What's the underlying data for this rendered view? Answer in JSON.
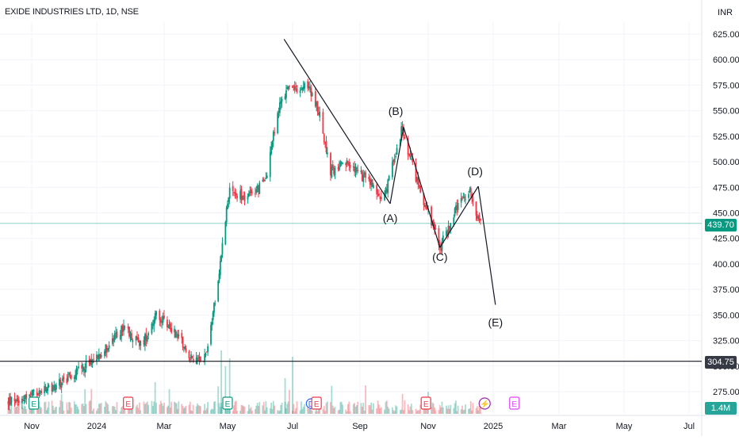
{
  "header": {
    "symbol": "EXIDE INDUSTRIES LTD, 1D, NSE",
    "currency": "INR"
  },
  "price_tags": {
    "last": "439.70",
    "level": "304.75",
    "volume": "1.4M"
  },
  "chart_data": {
    "type": "candlestick",
    "instrument": "EXIDE INDUSTRIES LTD",
    "interval": "1D",
    "exchange": "NSE",
    "currency": "INR",
    "grid": true,
    "ylim": [
      255,
      635
    ],
    "y_ticks": [
      275,
      300,
      325,
      350,
      375,
      400,
      425,
      450,
      475,
      500,
      525,
      550,
      575,
      600,
      625
    ],
    "x_ticks": [
      "Nov",
      "2024",
      "Mar",
      "May",
      "Jul",
      "Sep",
      "Nov",
      "2025",
      "Mar",
      "May",
      "Jul"
    ],
    "x_tick_dates": [
      "2023-11-01",
      "2024-01-01",
      "2024-03-01",
      "2024-05-01",
      "2024-07-01",
      "2024-09-01",
      "2024-11-01",
      "2025-01-01",
      "2025-03-01",
      "2025-05-01",
      "2025-07-01"
    ],
    "last_price": 439.7,
    "horizontal_level": 304.75,
    "current_volume": "1.4M",
    "approx_path": [
      {
        "date": "2023-10-10",
        "price": 265
      },
      {
        "date": "2023-11-20",
        "price": 278
      },
      {
        "date": "2023-12-20",
        "price": 300
      },
      {
        "date": "2024-01-10",
        "price": 318
      },
      {
        "date": "2024-01-25",
        "price": 338
      },
      {
        "date": "2024-02-10",
        "price": 320
      },
      {
        "date": "2024-02-22",
        "price": 350
      },
      {
        "date": "2024-03-10",
        "price": 335
      },
      {
        "date": "2024-03-18",
        "price": 325
      },
      {
        "date": "2024-03-28",
        "price": 305
      },
      {
        "date": "2024-04-10",
        "price": 310
      },
      {
        "date": "2024-04-22",
        "price": 385
      },
      {
        "date": "2024-05-02",
        "price": 470
      },
      {
        "date": "2024-05-20",
        "price": 465
      },
      {
        "date": "2024-06-05",
        "price": 480
      },
      {
        "date": "2024-06-12",
        "price": 520
      },
      {
        "date": "2024-06-20",
        "price": 560
      },
      {
        "date": "2024-06-28",
        "price": 575
      },
      {
        "date": "2024-07-05",
        "price": 568
      },
      {
        "date": "2024-07-15",
        "price": 575
      },
      {
        "date": "2024-07-25",
        "price": 550
      },
      {
        "date": "2024-08-05",
        "price": 490
      },
      {
        "date": "2024-08-20",
        "price": 498
      },
      {
        "date": "2024-09-10",
        "price": 480
      },
      {
        "date": "2024-09-22",
        "price": 462
      },
      {
        "date": "2024-10-03",
        "price": 510
      },
      {
        "date": "2024-10-08",
        "price": 530
      },
      {
        "date": "2024-10-15",
        "price": 505
      },
      {
        "date": "2024-10-30",
        "price": 455
      },
      {
        "date": "2024-11-13",
        "price": 418
      },
      {
        "date": "2024-11-28",
        "price": 455
      },
      {
        "date": "2024-12-10",
        "price": 470
      },
      {
        "date": "2024-12-20",
        "price": 440
      }
    ],
    "volume_events": [
      {
        "label": "E",
        "date": "2023-11-03",
        "color": "#089981"
      },
      {
        "label": "E",
        "date": "2024-01-29",
        "color": "#f23645"
      },
      {
        "label": "E",
        "date": "2024-05-01",
        "color": "#089981"
      },
      {
        "label": "D",
        "date": "2024-07-18",
        "color": "#2962ff"
      },
      {
        "label": "E",
        "date": "2024-07-23",
        "color": "#f23645"
      },
      {
        "label": "E",
        "date": "2024-10-30",
        "color": "#f23645"
      },
      {
        "label": "⚡",
        "date": "2024-12-24",
        "color": "#9c27b0"
      },
      {
        "label": "E",
        "date": "2025-01-20",
        "color": "#e040fb"
      }
    ],
    "annotations": {
      "wave_labels": [
        {
          "text": "(A)",
          "date": "2024-09-28",
          "price": 441
        },
        {
          "text": "(B)",
          "date": "2024-10-03",
          "price": 546
        },
        {
          "text": "(C)",
          "date": "2024-11-12",
          "price": 403
        },
        {
          "text": "(D)",
          "date": "2024-12-15",
          "price": 487
        },
        {
          "text": "(E)",
          "date": "2025-01-03",
          "price": 339
        }
      ],
      "trendlines": [
        [
          {
            "date": "2024-06-23",
            "price": 620
          },
          {
            "date": "2024-09-28",
            "price": 459
          }
        ],
        [
          {
            "date": "2024-09-28",
            "price": 459
          },
          {
            "date": "2024-10-10",
            "price": 534
          }
        ],
        [
          {
            "date": "2024-10-10",
            "price": 534
          },
          {
            "date": "2024-11-12",
            "price": 416
          }
        ],
        [
          {
            "date": "2024-11-12",
            "price": 416
          },
          {
            "date": "2024-12-18",
            "price": 476
          }
        ],
        [
          {
            "date": "2024-12-18",
            "price": 476
          },
          {
            "date": "2025-01-03",
            "price": 360
          }
        ]
      ]
    }
  }
}
